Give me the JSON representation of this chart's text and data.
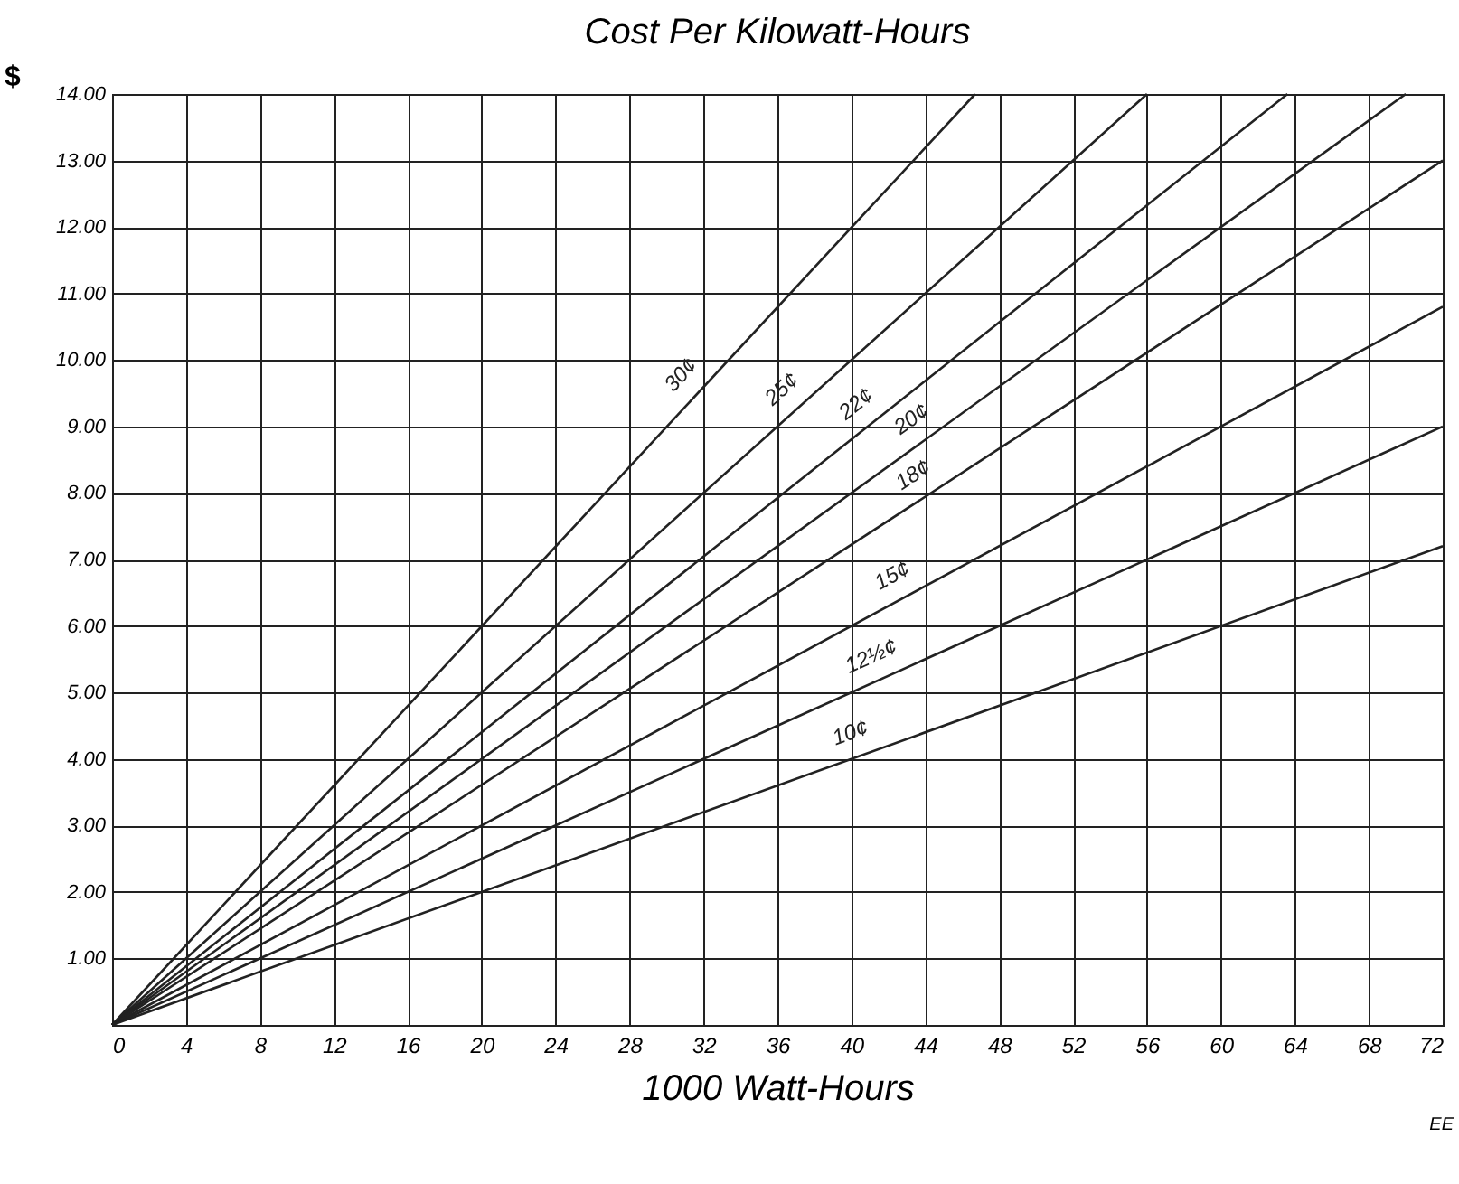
{
  "chart_data": {
    "type": "line",
    "title": "Cost Per Kilowatt-Hours",
    "xlabel": "1000 Watt-Hours",
    "ylabel": "$",
    "xlim": [
      0,
      72
    ],
    "xticks": [
      0,
      4,
      8,
      12,
      16,
      20,
      24,
      28,
      32,
      36,
      40,
      44,
      48,
      52,
      56,
      60,
      64,
      68,
      72
    ],
    "ylim": [
      0,
      14
    ],
    "yticks": [
      {
        "value": 1,
        "label": "1.00"
      },
      {
        "value": 2,
        "label": "2.00"
      },
      {
        "value": 3,
        "label": "3.00"
      },
      {
        "value": 4,
        "label": "4.00"
      },
      {
        "value": 5,
        "label": "5.00"
      },
      {
        "value": 6,
        "label": "6.00"
      },
      {
        "value": 7,
        "label": "7.00"
      },
      {
        "value": 8,
        "label": "8.00"
      },
      {
        "value": 9,
        "label": "9.00"
      },
      {
        "value": 10,
        "label": "10.00"
      },
      {
        "value": 11,
        "label": "11.00"
      },
      {
        "value": 12,
        "label": "12.00"
      },
      {
        "value": 13,
        "label": "13.00"
      },
      {
        "value": 14,
        "label": "14.00"
      }
    ],
    "grid": true,
    "marker": "none",
    "line_style": "solid",
    "legend": false,
    "series": [
      {
        "name": "30¢",
        "color": "#222222",
        "x": [
          0,
          46.7
        ],
        "values": [
          0,
          14
        ]
      },
      {
        "name": "25¢",
        "color": "#222222",
        "x": [
          0,
          56
        ],
        "values": [
          0,
          14
        ]
      },
      {
        "name": "22¢",
        "color": "#222222",
        "x": [
          0,
          63.6
        ],
        "values": [
          0,
          14
        ]
      },
      {
        "name": "20¢",
        "color": "#222222",
        "x": [
          0,
          70
        ],
        "values": [
          0,
          14
        ]
      },
      {
        "name": "18¢",
        "color": "#222222",
        "x": [
          0,
          72
        ],
        "values": [
          0,
          13
        ]
      },
      {
        "name": "15¢",
        "color": "#222222",
        "x": [
          0,
          72
        ],
        "values": [
          0,
          10.8
        ]
      },
      {
        "name": "12½¢",
        "color": "#222222",
        "x": [
          0,
          72
        ],
        "values": [
          0,
          9
        ]
      },
      {
        "name": "10¢",
        "color": "#222222",
        "x": [
          0,
          72
        ],
        "values": [
          0,
          7.2
        ]
      }
    ],
    "annotations": [
      "EE"
    ]
  }
}
